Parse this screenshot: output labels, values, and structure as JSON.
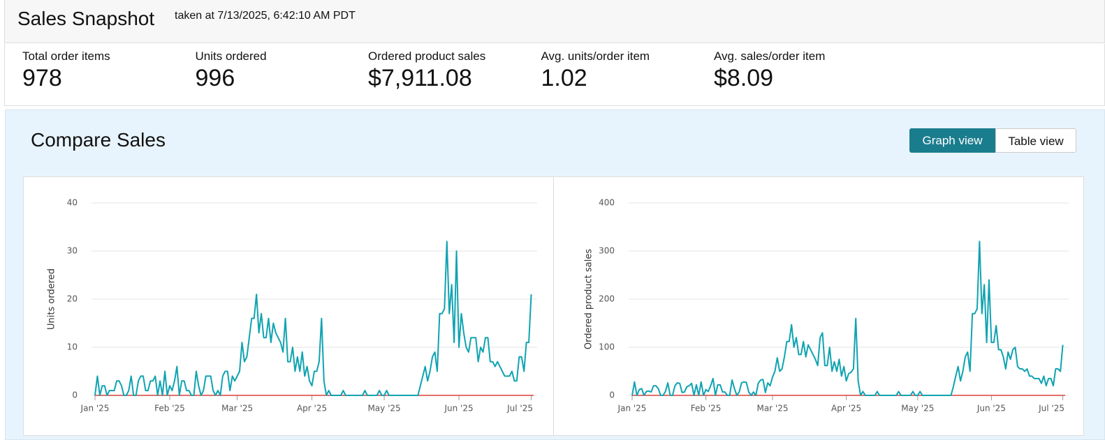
{
  "header": {
    "title": "Sales Snapshot",
    "timestamp": "taken at 7/13/2025, 6:42:10 AM PDT"
  },
  "metrics": [
    {
      "label": "Total order items",
      "value": "978"
    },
    {
      "label": "Units ordered",
      "value": "996"
    },
    {
      "label": "Ordered product sales",
      "value": "$7,911.08"
    },
    {
      "label": "Avg. units/order item",
      "value": "1.02"
    },
    {
      "label": "Avg. sales/order item",
      "value": "$8.09"
    }
  ],
  "section": {
    "title": "Compare Sales",
    "buttons": [
      "Graph view",
      "Table view"
    ]
  },
  "chart_data": [
    {
      "type": "line",
      "y_label": "Units ordered",
      "color": "#0fa3b1",
      "ylim": [
        0,
        40
      ],
      "yticks": [
        0,
        10,
        20,
        30,
        40
      ],
      "grid": true,
      "xlim": [
        0,
        182
      ],
      "xticks": [
        {
          "value": 0,
          "label": "Jan '25"
        },
        {
          "value": 31,
          "label": "Feb '25"
        },
        {
          "value": 59,
          "label": "Mar '25"
        },
        {
          "value": 90,
          "label": "Apr '25"
        },
        {
          "value": 120,
          "label": "May '25"
        },
        {
          "value": 151,
          "label": "Jun '25"
        },
        {
          "value": 181,
          "label": "Jul '25"
        }
      ],
      "values": [
        0,
        4,
        0,
        2,
        2,
        0,
        1,
        1,
        1,
        3,
        3,
        2,
        0,
        0,
        1,
        4,
        0,
        0,
        3,
        4,
        4,
        1,
        1,
        3,
        3,
        4,
        0,
        3,
        0,
        5,
        0,
        2,
        1,
        3,
        6,
        0,
        3,
        3,
        1,
        1,
        0,
        0,
        5,
        2,
        0,
        1,
        4,
        4,
        4,
        1,
        0,
        1,
        0,
        4,
        5,
        5,
        1,
        4,
        3,
        4,
        5,
        11,
        7,
        8,
        12,
        16,
        16,
        21,
        13,
        17,
        12,
        12,
        16,
        11,
        15,
        13,
        12,
        11,
        9,
        16,
        7,
        7,
        10,
        5,
        8,
        5,
        9,
        4,
        6,
        3,
        2,
        5,
        5,
        7,
        16,
        3,
        0,
        1,
        0,
        0,
        0,
        0,
        0,
        1,
        0,
        0,
        0,
        0,
        0,
        0,
        0,
        0,
        1,
        0,
        0,
        0,
        0,
        0,
        1,
        0,
        0,
        1,
        0,
        0,
        0,
        0,
        0,
        0,
        0,
        0,
        0,
        0,
        0,
        0,
        0,
        2,
        4,
        6,
        3,
        5,
        8,
        9,
        5,
        17,
        17,
        18,
        32,
        17,
        23,
        11,
        30,
        10,
        17,
        13,
        10,
        9,
        12,
        12,
        12,
        7,
        10,
        9,
        12,
        12,
        7,
        7,
        6,
        7,
        6,
        5,
        4,
        4,
        4,
        5,
        3,
        3,
        8,
        8,
        5,
        11,
        11,
        21
      ]
    },
    {
      "type": "line",
      "y_label": "Ordered product sales",
      "color": "#0fa3b1",
      "ylim": [
        0,
        400
      ],
      "yticks": [
        0,
        100,
        200,
        300,
        400
      ],
      "grid": true,
      "xlim": [
        0,
        182
      ],
      "xticks": [
        {
          "value": 0,
          "label": "Jan '25"
        },
        {
          "value": 31,
          "label": "Feb '25"
        },
        {
          "value": 59,
          "label": "Mar '25"
        },
        {
          "value": 90,
          "label": "Apr '25"
        },
        {
          "value": 120,
          "label": "May '25"
        },
        {
          "value": 151,
          "label": "Jun '25"
        },
        {
          "value": 181,
          "label": "Jul '25"
        }
      ],
      "values": [
        0,
        28,
        0,
        12,
        14,
        0,
        8,
        9,
        7,
        20,
        20,
        14,
        0,
        0,
        8,
        26,
        0,
        0,
        20,
        26,
        25,
        6,
        7,
        18,
        20,
        25,
        0,
        22,
        0,
        28,
        0,
        12,
        8,
        20,
        35,
        0,
        22,
        22,
        7,
        7,
        0,
        0,
        32,
        14,
        0,
        7,
        26,
        28,
        27,
        7,
        0,
        7,
        0,
        25,
        32,
        33,
        6,
        26,
        20,
        38,
        50,
        78,
        50,
        55,
        80,
        112,
        112,
        147,
        100,
        120,
        85,
        85,
        112,
        80,
        105,
        95,
        85,
        75,
        62,
        120,
        130,
        62,
        62,
        100,
        50,
        70,
        50,
        75,
        40,
        60,
        30,
        45,
        48,
        55,
        160,
        30,
        0,
        8,
        0,
        0,
        0,
        0,
        0,
        8,
        0,
        0,
        0,
        0,
        0,
        0,
        0,
        0,
        8,
        0,
        0,
        0,
        0,
        0,
        8,
        0,
        0,
        8,
        0,
        0,
        0,
        0,
        0,
        0,
        0,
        0,
        0,
        0,
        0,
        0,
        0,
        18,
        40,
        60,
        30,
        50,
        80,
        90,
        50,
        170,
        170,
        180,
        320,
        170,
        230,
        110,
        240,
        110,
        110,
        145,
        95,
        95,
        80,
        55,
        90,
        75,
        95,
        100,
        60,
        55,
        55,
        50,
        55,
        40,
        40,
        35,
        35,
        35,
        25,
        40,
        20,
        35,
        35,
        20,
        55,
        55,
        50,
        105
      ]
    }
  ]
}
